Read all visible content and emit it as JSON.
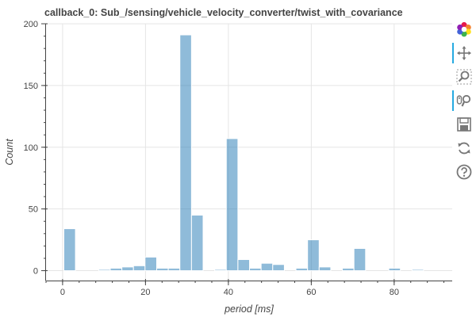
{
  "chart_data": {
    "type": "bar",
    "title": "callback_0: Sub_/sensing/vehicle_velocity_converter/twist_with_covariance",
    "xlabel": "period [ms]",
    "ylabel": "Count",
    "bar_color": "#1f77b4",
    "bar_opacity": 0.5,
    "xlim": [
      -4,
      94
    ],
    "ylim": [
      -8,
      200
    ],
    "x_ticks": [
      0,
      20,
      40,
      60,
      80
    ],
    "y_ticks": [
      0,
      50,
      100,
      150,
      200
    ],
    "grid": true,
    "bins": [
      {
        "x0": 0.3,
        "x1": 3.1,
        "count": 34
      },
      {
        "x0": 8.7,
        "x1": 11.5,
        "count": 1
      },
      {
        "x0": 11.5,
        "x1": 14.3,
        "count": 2
      },
      {
        "x0": 14.3,
        "x1": 17.1,
        "count": 3
      },
      {
        "x0": 17.1,
        "x1": 19.9,
        "count": 4
      },
      {
        "x0": 19.9,
        "x1": 22.7,
        "count": 11
      },
      {
        "x0": 22.7,
        "x1": 25.5,
        "count": 2
      },
      {
        "x0": 25.5,
        "x1": 28.3,
        "count": 2
      },
      {
        "x0": 28.3,
        "x1": 31.1,
        "count": 191
      },
      {
        "x0": 31.1,
        "x1": 33.9,
        "count": 45
      },
      {
        "x0": 36.7,
        "x1": 39.5,
        "count": 1
      },
      {
        "x0": 39.5,
        "x1": 42.3,
        "count": 107
      },
      {
        "x0": 42.3,
        "x1": 45.1,
        "count": 9
      },
      {
        "x0": 45.1,
        "x1": 47.9,
        "count": 2
      },
      {
        "x0": 47.9,
        "x1": 50.7,
        "count": 6
      },
      {
        "x0": 50.7,
        "x1": 53.5,
        "count": 5
      },
      {
        "x0": 56.3,
        "x1": 59.1,
        "count": 2
      },
      {
        "x0": 59.1,
        "x1": 61.9,
        "count": 25
      },
      {
        "x0": 61.9,
        "x1": 64.7,
        "count": 3
      },
      {
        "x0": 67.5,
        "x1": 70.3,
        "count": 2
      },
      {
        "x0": 70.3,
        "x1": 73.1,
        "count": 18
      },
      {
        "x0": 78.7,
        "x1": 81.5,
        "count": 2
      },
      {
        "x0": 84.3,
        "x1": 87.1,
        "count": 1
      }
    ]
  },
  "toolbar": {
    "tools": [
      {
        "icon": "bokeh-logo-icon",
        "active": false
      },
      {
        "icon": "pan-icon",
        "active": true
      },
      {
        "icon": "box-zoom-icon",
        "active": false
      },
      {
        "icon": "wheel-zoom-icon",
        "active": true
      },
      {
        "icon": "save-icon",
        "active": false
      },
      {
        "icon": "reset-icon",
        "active": false
      },
      {
        "icon": "help-icon",
        "active": false
      }
    ]
  }
}
